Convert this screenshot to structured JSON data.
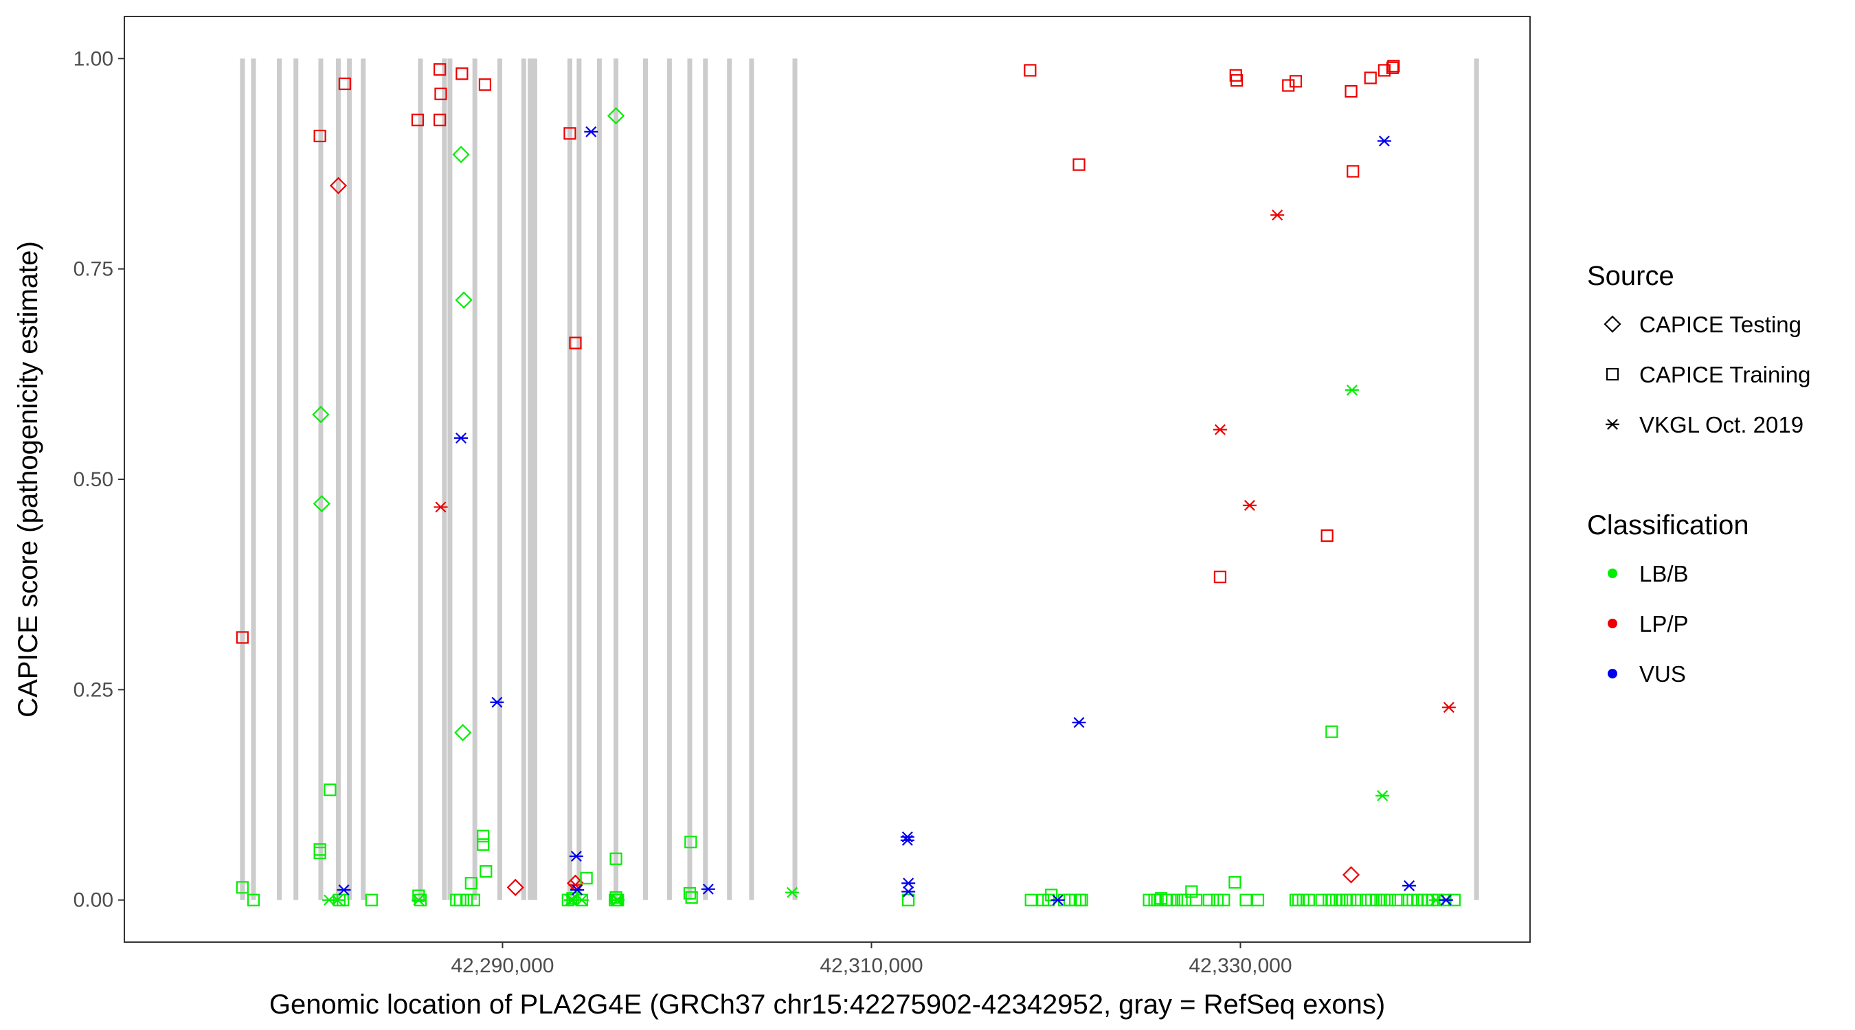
{
  "chart_data": {
    "type": "scatter",
    "xlabel": "Genomic location of PLA2G4E (GRCh37 chr15:42275902-42342952, gray = RefSeq exons)",
    "ylabel": "CAPICE score (pathogenicity estimate)",
    "xlim": [
      42269500,
      42345700
    ],
    "ylim": [
      -0.05,
      1.05
    ],
    "x_ticks": [
      42290000,
      42310000,
      42330000
    ],
    "x_tick_labels": [
      "42,290,000",
      "42,310,000",
      "42,330,000"
    ],
    "y_ticks": [
      0,
      0.25,
      0.5,
      0.75,
      1.0
    ],
    "y_tick_labels": [
      "0.00",
      "0.25",
      "0.50",
      "0.75",
      "1.00"
    ],
    "grid": false,
    "exons": [
      42275902,
      42276500,
      42277900,
      42278800,
      42280150,
      42281100,
      42281700,
      42282450,
      42285550,
      42286850,
      42287150,
      42288500,
      42289850,
      42291150,
      42291500,
      42291750,
      42293650,
      42294150,
      42295250,
      42296150,
      42297750,
      42299050,
      42300150,
      42301000,
      42302300,
      42303500,
      42305850,
      42342800
    ],
    "exon_color": "#cccccc",
    "shape_legend": {
      "title": "Source",
      "position": "right",
      "items": [
        {
          "label": "CAPICE Testing",
          "shape": "diamond"
        },
        {
          "label": "CAPICE Training",
          "shape": "square"
        },
        {
          "label": "VKGL Oct. 2019",
          "shape": "asterisk"
        }
      ]
    },
    "color_legend": {
      "title": "Classification",
      "position": "right",
      "items": [
        {
          "label": "LB/B",
          "color": "#00ee00"
        },
        {
          "label": "LP/P",
          "color": "#ee0000"
        },
        {
          "label": "VUS",
          "color": "#0000ee"
        }
      ]
    },
    "series": [
      {
        "source": "CAPICE Training",
        "classification": "LP/P",
        "shape": "square",
        "color": "#ee0000",
        "x": [
          42275900,
          42280100,
          42281450,
          42285400,
          42286600,
          42286650,
          42286600,
          42287800,
          42289050,
          42293650,
          42293950,
          42318600,
          42321250,
          42328900,
          42329750,
          42329800,
          42332600,
          42333000,
          42334700,
          42336000,
          42336100,
          42337050,
          42337800,
          42338250,
          42338300
        ],
        "y": [
          0.312,
          0.908,
          0.97,
          0.927,
          0.987,
          0.958,
          0.927,
          0.982,
          0.969,
          0.911,
          0.662,
          0.986,
          0.874,
          0.384,
          0.98,
          0.974,
          0.968,
          0.973,
          0.433,
          0.961,
          0.866,
          0.977,
          0.986,
          0.989,
          0.991
        ]
      },
      {
        "source": "CAPICE Testing",
        "classification": "LP/P",
        "shape": "diamond",
        "color": "#ee0000",
        "x": [
          42281100,
          42290700,
          42293950,
          42336000
        ],
        "y": [
          0.849,
          0.015,
          0.02,
          0.03
        ]
      },
      {
        "source": "VKGL Oct. 2019",
        "classification": "LP/P",
        "shape": "asterisk",
        "color": "#ee0000",
        "x": [
          42286650,
          42293950,
          42328900,
          42330500,
          42332000,
          42341300
        ],
        "y": [
          0.467,
          0.018,
          0.559,
          0.469,
          0.814,
          0.229
        ]
      },
      {
        "source": "CAPICE Testing",
        "classification": "LB/B",
        "shape": "diamond",
        "color": "#00ee00",
        "x": [
          42280150,
          42280200,
          42287750,
          42287900,
          42287850,
          42296150
        ],
        "y": [
          0.577,
          0.471,
          0.886,
          0.713,
          0.199,
          0.932
        ]
      },
      {
        "source": "CAPICE Training",
        "classification": "LB/B",
        "shape": "square",
        "color": "#00ee00",
        "x": [
          42275900,
          42276500,
          42280100,
          42280100,
          42280650,
          42281150,
          42281350,
          42282900,
          42285450,
          42285550,
          42287500,
          42287700,
          42288050,
          42288300,
          42288450,
          42288950,
          42288950,
          42289100,
          42293550,
          42293800,
          42294300,
          42294550,
          42296100,
          42296150,
          42296150,
          42296250,
          42296200,
          42300200,
          42300150,
          42300250,
          42312000,
          42318650,
          42319300,
          42319600,
          42319750,
          42320450,
          42320750,
          42321050,
          42321300,
          42321400,
          42325050,
          42325350,
          42325500,
          42325700,
          42326000,
          42326300,
          42326550,
          42326800,
          42327000,
          42327350,
          42327600,
          42328300,
          42328750,
          42329100,
          42329700,
          42330300,
          42330950,
          42333000,
          42333150,
          42333400,
          42333700,
          42334400,
          42334800,
          42334950,
          42335200,
          42335500,
          42335750,
          42335950,
          42336300,
          42336800,
          42337100,
          42337350,
          42337600,
          42337800,
          42338100,
          42338550,
          42339050,
          42339350,
          42339600,
          42339850,
          42340150,
          42340400,
          42340700,
          42341100,
          42341600,
          42334950
        ],
        "y": [
          0.015,
          0.0,
          0.06,
          0.056,
          0.131,
          0.0,
          0.0,
          0.0,
          0.005,
          0.0,
          0.0,
          0.0,
          0.0,
          0.02,
          0.0,
          0.076,
          0.066,
          0.034,
          0.0,
          0.002,
          0.0,
          0.026,
          0.0,
          0.049,
          0.003,
          0.0,
          0.0,
          0.069,
          0.008,
          0.003,
          0.0,
          0.0,
          0.0,
          0.0,
          0.006,
          0.0,
          0.0,
          0.0,
          0.0,
          0.0,
          0.0,
          0.0,
          0.0,
          0.002,
          0.0,
          0.0,
          0.0,
          0.0,
          0.0,
          0.01,
          0.0,
          0.0,
          0.0,
          0.0,
          0.021,
          0.0,
          0.0,
          0.0,
          0.0,
          0.0,
          0.0,
          0.0,
          0.0,
          0.2,
          0.0,
          0.0,
          0.0,
          0.0,
          0.0,
          0.0,
          0.0,
          0.0,
          0.0,
          0.0,
          0.0,
          0.0,
          0.0,
          0.0,
          0.0,
          0.0,
          0.0,
          0.0,
          0.0,
          0.0,
          0.0,
          0.0
        ]
      },
      {
        "source": "VKGL Oct. 2019",
        "classification": "LB/B",
        "shape": "asterisk",
        "color": "#00ee00",
        "x": [
          42280600,
          42281050,
          42285450,
          42293700,
          42293800,
          42294300,
          42296200,
          42296250,
          42305700,
          42336050,
          42337700,
          42340600
        ],
        "y": [
          0.0,
          0.0,
          0.0,
          0.0,
          0.0,
          0.0,
          0.0,
          0.0,
          0.009,
          0.606,
          0.124,
          0.0
        ]
      },
      {
        "source": "VKGL Oct. 2019",
        "classification": "VUS",
        "shape": "asterisk",
        "color": "#0000ee",
        "x": [
          42281400,
          42287750,
          42289700,
          42294000,
          42294050,
          42294800,
          42301150,
          42311950,
          42311950,
          42312000,
          42312000,
          42320100,
          42321250,
          42337800,
          42339150,
          42341150
        ],
        "y": [
          0.012,
          0.549,
          0.235,
          0.052,
          0.012,
          0.913,
          0.013,
          0.075,
          0.071,
          0.02,
          0.01,
          0.0,
          0.211,
          0.902,
          0.017,
          0.0
        ]
      }
    ]
  }
}
